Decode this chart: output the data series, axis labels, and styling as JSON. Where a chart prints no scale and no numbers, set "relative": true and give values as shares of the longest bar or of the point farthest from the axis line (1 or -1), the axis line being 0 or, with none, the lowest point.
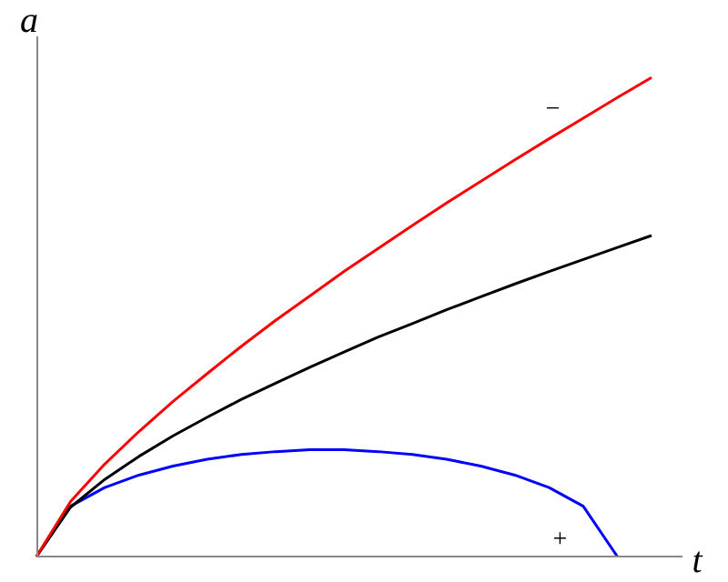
{
  "chart_data": {
    "type": "line",
    "xlabel": "t",
    "ylabel": "a",
    "relative": true,
    "legend": false,
    "marker": "none",
    "categories": [
      null,
      null,
      null,
      null,
      null,
      null,
      null,
      null,
      null,
      null,
      null,
      null,
      null,
      null,
      null,
      null,
      null,
      null,
      null
    ],
    "series": [
      {
        "name": "−",
        "color": "#ff0000",
        "values": [
          0,
          0.115,
          0.193,
          0.261,
          0.324,
          0.382,
          0.439,
          0.493,
          0.544,
          0.595,
          0.643,
          0.691,
          0.738,
          0.783,
          0.828,
          0.872,
          0.915,
          0.958,
          1
        ]
      },
      {
        "color": "#000000",
        "values": [
          0,
          0.103,
          0.161,
          0.209,
          0.252,
          0.291,
          0.328,
          0.362,
          0.395,
          0.427,
          0.458,
          0.486,
          0.515,
          0.542,
          0.569,
          0.595,
          0.62,
          0.645,
          0.67
        ]
      },
      {
        "name": "+",
        "color": "#0000ff",
        "values": [
          0,
          0.105,
          0.144,
          0.17,
          0.189,
          0.203,
          0.213,
          0.219,
          0.223,
          0.223,
          0.219,
          0.213,
          0.203,
          0.189,
          0.17,
          0.144,
          0.105,
          0,
          null
        ]
      }
    ]
  }
}
